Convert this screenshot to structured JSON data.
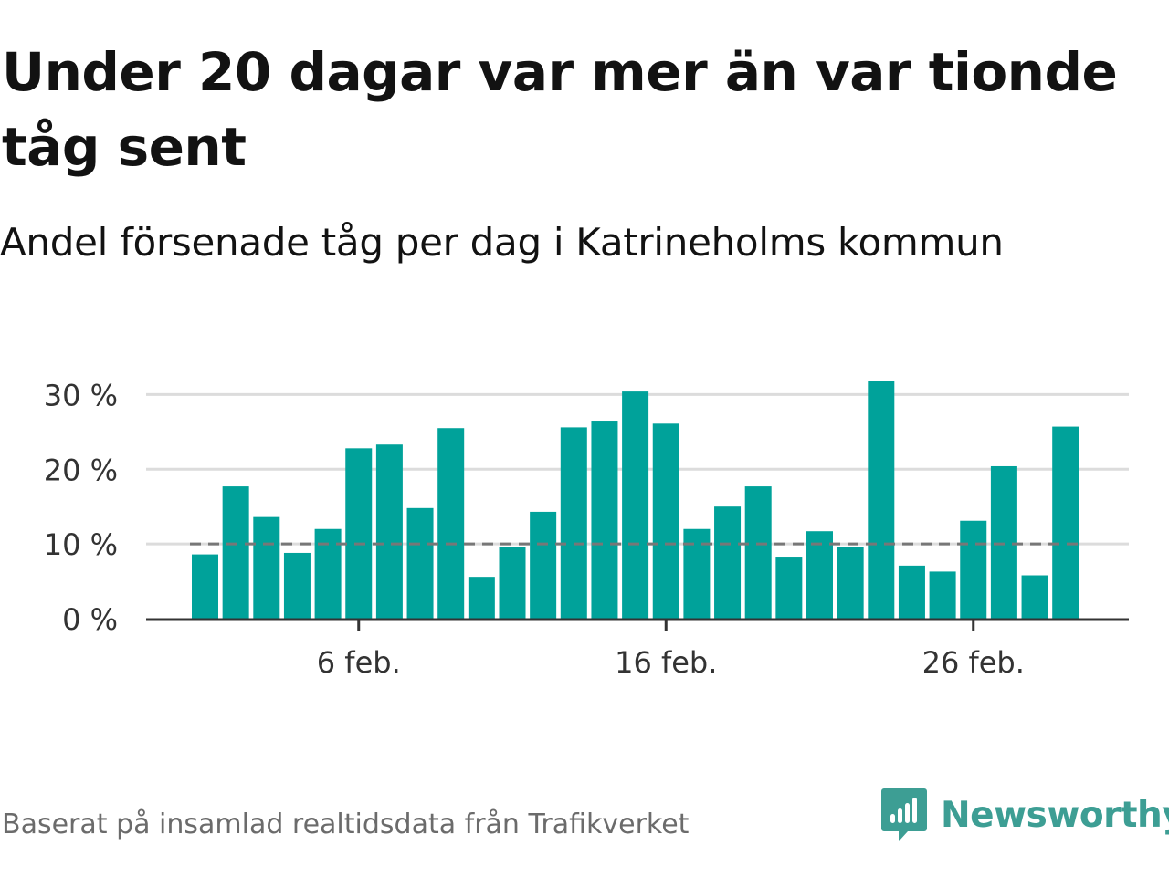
{
  "title": "Under 20 dagar var mer än var tionde tåg sent",
  "subtitle": "Andel försenade tåg per dag i Katrineholms kommun",
  "footer": "Baserat på insamlad realtidsdata från Trafikverket",
  "brand": {
    "name": "Newsworthy",
    "icon": "newsworthy-logo-icon",
    "color": "#3d9e94"
  },
  "colors": {
    "bar": "#00a29a",
    "reference_line": "#777777",
    "grid": "#dcdcdc",
    "axis": "#333333"
  },
  "chart_data": {
    "type": "bar",
    "title": "Under 20 dagar var mer än var tionde tåg sent",
    "subtitle": "Andel försenade tåg per dag i Katrineholms kommun",
    "xlabel": "",
    "ylabel": "",
    "x": [
      "2023-02-01",
      "2023-02-02",
      "2023-02-03",
      "2023-02-04",
      "2023-02-05",
      "2023-02-06",
      "2023-02-07",
      "2023-02-08",
      "2023-02-09",
      "2023-02-10",
      "2023-02-11",
      "2023-02-12",
      "2023-02-13",
      "2023-02-14",
      "2023-02-15",
      "2023-02-16",
      "2023-02-17",
      "2023-02-18",
      "2023-02-19",
      "2023-02-20",
      "2023-02-21",
      "2023-02-22",
      "2023-02-23",
      "2023-02-24",
      "2023-02-25",
      "2023-02-26",
      "2023-02-27",
      "2023-02-28",
      "2023-03-01"
    ],
    "values": [
      8.6,
      17.7,
      13.6,
      8.8,
      12.0,
      22.8,
      23.3,
      14.8,
      25.5,
      5.6,
      9.6,
      14.3,
      25.6,
      26.5,
      30.4,
      26.1,
      12.0,
      15.0,
      17.7,
      8.3,
      11.7,
      9.6,
      31.8,
      7.1,
      6.3,
      13.1,
      20.4,
      5.8,
      25.7
    ],
    "reference_line": 10,
    "ylim": [
      0,
      32
    ],
    "yticks": [
      0,
      10,
      20,
      30
    ],
    "ytick_labels": [
      "0 %",
      "10 %",
      "20 %",
      "30 %"
    ],
    "xtick_positions": [
      5,
      15,
      25
    ],
    "xtick_labels": [
      "6 feb.",
      "16 feb.",
      "26 feb."
    ],
    "grid": true,
    "legend": "none"
  }
}
